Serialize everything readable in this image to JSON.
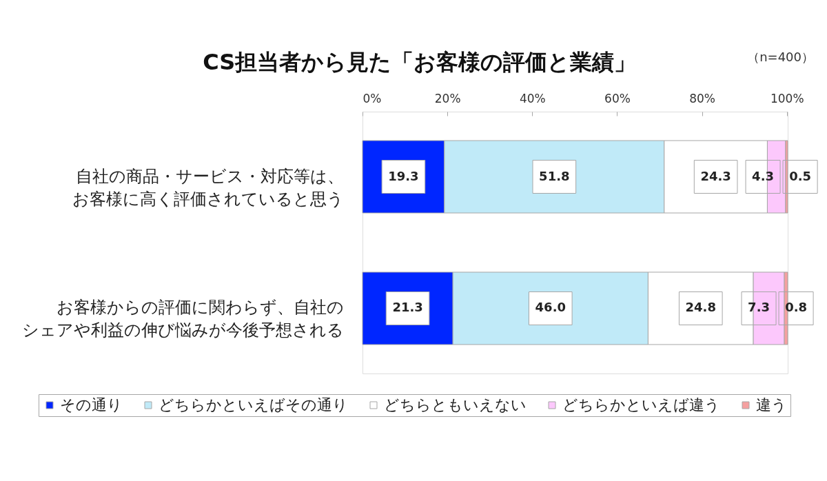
{
  "chart_data": {
    "type": "bar",
    "orientation": "horizontal",
    "stacked": true,
    "title": "CS担当者から見た「お客様の評価と業績」",
    "annotations": [
      "（n=400）"
    ],
    "categories": [
      "自社の商品・サービス・対応等は、お客様に高く評価されていると思う",
      "お客様からの評価に関わらず、自社のシェアや利益の伸び悩みが今後予想される"
    ],
    "series": [
      {
        "name": "その通り",
        "color": "#0026ff",
        "values": [
          19.3,
          21.3
        ],
        "value_labels": [
          "19.3",
          "21.3"
        ]
      },
      {
        "name": "どちらかといえばその通り",
        "color": "#c0eaf8",
        "values": [
          51.8,
          46.0
        ],
        "value_labels": [
          "51.8",
          "46.0"
        ]
      },
      {
        "name": "どちらともいえない",
        "color": "#ffffff",
        "values": [
          24.3,
          24.8
        ],
        "value_labels": [
          "24.3",
          "24.8"
        ]
      },
      {
        "name": "どちらかといえば違う",
        "color": "#fcc8fc",
        "values": [
          4.3,
          7.3
        ],
        "value_labels": [
          "4.3",
          "7.3"
        ]
      },
      {
        "name": "違う",
        "color": "#f5a0a0",
        "values": [
          0.5,
          0.8
        ],
        "value_labels": [
          "0.5",
          "0.8"
        ]
      }
    ],
    "xlim": [
      0,
      100.2
    ],
    "xticks": [
      {
        "value": 0,
        "label": "0%"
      },
      {
        "value": 20,
        "label": "20%"
      },
      {
        "value": 40,
        "label": "40%"
      },
      {
        "value": 60,
        "label": "60%"
      },
      {
        "value": 80,
        "label": "80%"
      },
      {
        "value": 100,
        "label": "100%"
      }
    ],
    "legend": "bottom",
    "grid": false
  }
}
